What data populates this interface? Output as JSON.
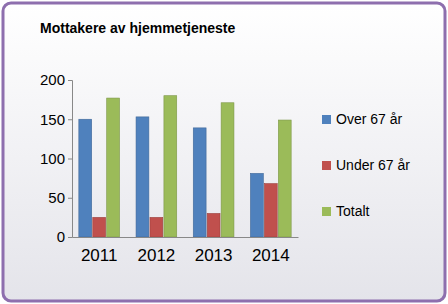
{
  "chart_data": {
    "type": "bar",
    "title": "Mottakere av hjemmetjeneste",
    "categories": [
      "2011",
      "2012",
      "2013",
      "2014"
    ],
    "series": [
      {
        "name": "Over 67 år",
        "color": "#4f81bd",
        "values": [
          150,
          153,
          139,
          81
        ]
      },
      {
        "name": "Under 67 år",
        "color": "#c0504d",
        "values": [
          25,
          25,
          30,
          68
        ]
      },
      {
        "name": "Totalt",
        "color": "#9bbb59",
        "values": [
          177,
          180,
          171,
          149
        ]
      }
    ],
    "ylim": [
      0,
      200
    ],
    "yticks": [
      0,
      50,
      100,
      150,
      200
    ],
    "grid": false,
    "legend": "right"
  }
}
